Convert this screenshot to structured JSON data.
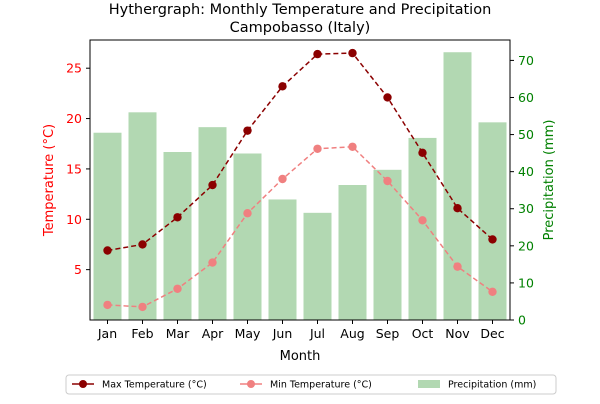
{
  "chart_data": {
    "type": "bar+line",
    "title_line1": "Hythergraph: Monthly Temperature and Precipitation",
    "title_line2": "Campobasso (Italy)",
    "xlabel": "Month",
    "ylabel_left": "Temperature (°C)",
    "ylabel_right": "Precipitation (mm)",
    "categories": [
      "Jan",
      "Feb",
      "Mar",
      "Apr",
      "May",
      "Jun",
      "Jul",
      "Aug",
      "Sep",
      "Oct",
      "Nov",
      "Dec"
    ],
    "left_axis": {
      "min": 0,
      "max": 27.8,
      "ticks": [
        5,
        10,
        15,
        20,
        25
      ],
      "color": "#ff0000"
    },
    "right_axis": {
      "min": 0,
      "max": 75.5,
      "ticks": [
        0,
        10,
        20,
        30,
        40,
        50,
        60,
        70
      ],
      "color": "#008000"
    },
    "series": [
      {
        "name": "Max Temperature (°C)",
        "kind": "line",
        "axis": "left",
        "color": "#8b0000",
        "values": [
          6.9,
          7.5,
          10.2,
          13.4,
          18.8,
          23.2,
          26.4,
          26.5,
          22.1,
          16.6,
          11.1,
          8.0
        ]
      },
      {
        "name": "Min Temperature (°C)",
        "kind": "line",
        "axis": "left",
        "color": "#f08080",
        "values": [
          1.5,
          1.3,
          3.1,
          5.7,
          10.6,
          14.0,
          17.0,
          17.2,
          13.8,
          9.9,
          5.3,
          2.8
        ]
      },
      {
        "name": "Precipitation (mm)",
        "kind": "bar",
        "axis": "right",
        "color": "#b2d8b2",
        "values": [
          50.5,
          56.0,
          45.3,
          52.0,
          44.9,
          32.5,
          28.9,
          36.4,
          40.5,
          49.1,
          72.2,
          53.3
        ]
      }
    ],
    "legend_position": "bottom-center",
    "grid": false
  }
}
